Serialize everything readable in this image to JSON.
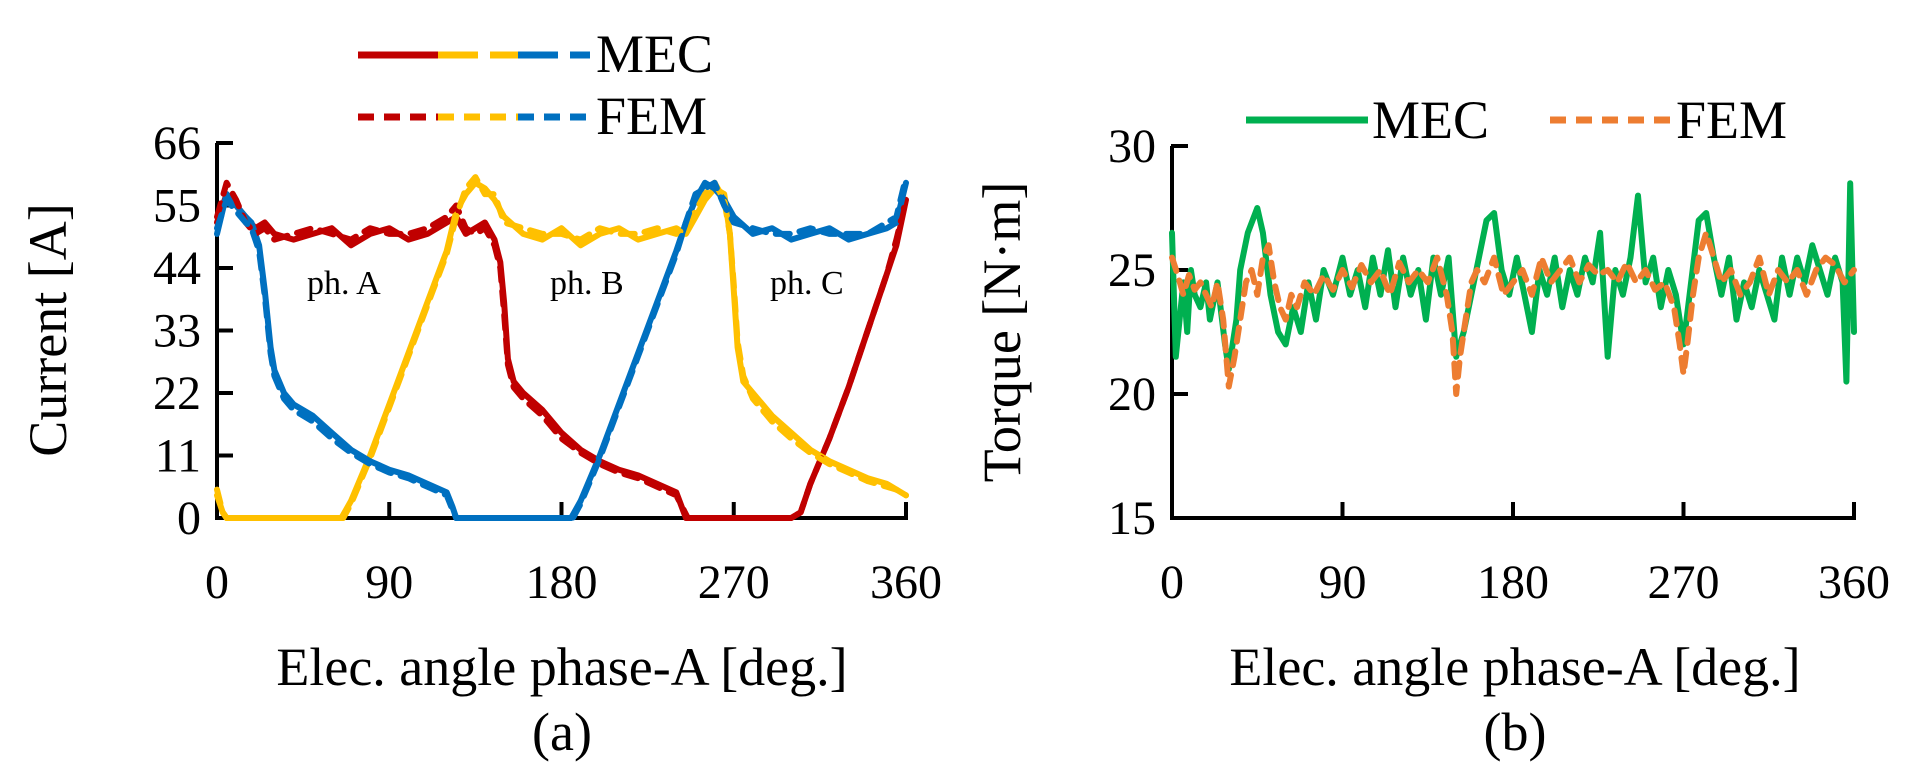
{
  "chart_data": [
    {
      "panel_label": "(a)",
      "type": "line",
      "ylabel": "Current [A]",
      "xlabel": "Elec. angle phase-A [deg.]",
      "xlim": [
        0,
        360
      ],
      "ylim": [
        0,
        66
      ],
      "xticks": [
        0,
        90,
        180,
        270,
        360
      ],
      "yticks": [
        0,
        11,
        22,
        33,
        44,
        55,
        66
      ],
      "legend_position": "top-center",
      "legend": [
        {
          "label": "MEC",
          "style": "solid",
          "colors": [
            "#C00000",
            "#FFC000",
            "#0070C0"
          ]
        },
        {
          "label": "FEM",
          "style": "dashed",
          "colors": [
            "#C00000",
            "#FFC000",
            "#0070C0"
          ]
        }
      ],
      "annotations": [
        {
          "text": "ph. A",
          "x": 90,
          "y": 42
        },
        {
          "text": "ph. B",
          "x": 195,
          "y": 42
        },
        {
          "text": "ph. C",
          "x": 315,
          "y": 42
        }
      ],
      "series": [
        {
          "name": "ph. A MEC",
          "color": "#C00000",
          "style": "solid",
          "x": [
            0,
            5,
            10,
            15,
            20,
            25,
            30,
            40,
            50,
            60,
            70,
            80,
            90,
            100,
            110,
            120,
            125,
            130,
            135,
            140,
            145,
            148,
            150,
            152,
            155,
            160,
            170,
            180,
            190,
            200,
            210,
            220,
            230,
            240,
            245,
            250,
            260,
            270,
            280,
            290,
            300,
            305,
            310,
            320,
            330,
            340,
            350,
            355,
            360
          ],
          "y": [
            52,
            57,
            55,
            53,
            51,
            52,
            50,
            49,
            50,
            51,
            48,
            50,
            51,
            49,
            50,
            52,
            53,
            50,
            51,
            52,
            49,
            45,
            38,
            28,
            24,
            22,
            19,
            15,
            12,
            10,
            8.5,
            7.5,
            6,
            4.5,
            0,
            0,
            0,
            0,
            0,
            0,
            0,
            1,
            6,
            14,
            23,
            33,
            43,
            48,
            56
          ]
        },
        {
          "name": "ph. B MEC",
          "color": "#FFC000",
          "style": "solid",
          "x": [
            0,
            3,
            5,
            10,
            20,
            30,
            40,
            50,
            60,
            65,
            70,
            80,
            90,
            100,
            110,
            120,
            125,
            130,
            135,
            140,
            145,
            150,
            160,
            170,
            180,
            190,
            200,
            210,
            220,
            230,
            240,
            245,
            250,
            255,
            260,
            265,
            268,
            270,
            272,
            275,
            280,
            290,
            300,
            310,
            320,
            330,
            340,
            350,
            355,
            360
          ],
          "y": [
            4,
            1,
            0,
            0,
            0,
            0,
            0,
            0,
            0,
            0,
            3,
            11,
            20,
            29,
            38,
            47,
            54,
            57,
            59,
            58,
            56,
            53,
            50,
            49,
            51,
            48,
            50,
            51,
            49,
            50,
            51,
            50,
            53,
            56,
            58,
            57,
            50,
            40,
            30,
            24,
            22,
            18,
            15,
            12,
            10,
            8.5,
            7,
            6,
            5,
            4
          ]
        },
        {
          "name": "ph. C MEC",
          "color": "#0070C0",
          "style": "solid",
          "x": [
            0,
            5,
            10,
            15,
            18,
            20,
            22,
            25,
            28,
            30,
            35,
            40,
            50,
            60,
            70,
            80,
            90,
            100,
            110,
            120,
            123,
            125,
            130,
            140,
            150,
            160,
            170,
            180,
            185,
            190,
            200,
            210,
            220,
            230,
            240,
            245,
            250,
            255,
            260,
            265,
            270,
            280,
            290,
            300,
            310,
            320,
            330,
            340,
            350,
            355,
            360
          ],
          "y": [
            50,
            57,
            55,
            53,
            52,
            50,
            48,
            40,
            30,
            26,
            22,
            20,
            18,
            15,
            12,
            10,
            8.5,
            7.5,
            6,
            4.5,
            2,
            0,
            0,
            0,
            0,
            0,
            0,
            0,
            0,
            3,
            11,
            20,
            29,
            38,
            47,
            52,
            56,
            59,
            58,
            56,
            53,
            50,
            51,
            49,
            50,
            51,
            49,
            50,
            51,
            52,
            59
          ]
        },
        {
          "name": "ph. A FEM",
          "color": "#C00000",
          "style": "dashed",
          "x": [
            0,
            5,
            10,
            15,
            20,
            25,
            30,
            40,
            50,
            60,
            70,
            80,
            90,
            100,
            110,
            120,
            125,
            130,
            135,
            140,
            145,
            148,
            150,
            152,
            155,
            160,
            170,
            180,
            190,
            200,
            210,
            220,
            230,
            240,
            246,
            250,
            260,
            270,
            280,
            290,
            300,
            305,
            310,
            320,
            330,
            340,
            350,
            355,
            360
          ],
          "y": [
            53,
            59,
            56,
            52,
            50,
            51,
            49,
            50,
            51,
            50,
            49,
            51,
            50,
            50,
            51,
            53,
            55,
            51,
            50,
            51,
            48,
            44,
            36,
            27,
            23,
            21,
            18,
            14,
            11.5,
            9.5,
            8,
            7,
            5.5,
            4,
            0,
            0,
            0,
            0,
            0,
            0,
            0,
            1,
            6,
            14,
            23,
            33,
            43,
            49,
            56
          ]
        },
        {
          "name": "ph. B FEM",
          "color": "#FFC000",
          "style": "dashed",
          "x": [
            0,
            3,
            5,
            10,
            20,
            30,
            40,
            50,
            60,
            66,
            70,
            80,
            90,
            100,
            110,
            120,
            125,
            130,
            135,
            140,
            145,
            150,
            160,
            170,
            180,
            190,
            200,
            210,
            220,
            230,
            240,
            245,
            250,
            255,
            260,
            265,
            268,
            270,
            272,
            275,
            280,
            290,
            300,
            310,
            320,
            330,
            340,
            350,
            355,
            360
          ],
          "y": [
            5,
            1,
            0,
            0,
            0,
            0,
            0,
            0,
            0,
            0,
            2.5,
            10.5,
            19.5,
            28.5,
            37.5,
            46.5,
            53,
            58,
            60,
            57,
            57,
            52,
            51,
            50,
            50,
            49,
            51,
            50,
            50,
            51,
            50,
            51,
            54,
            57,
            59,
            56,
            50,
            41,
            31,
            25,
            21,
            17,
            14,
            11.5,
            9.5,
            8,
            6.5,
            5.5,
            5,
            4
          ]
        },
        {
          "name": "ph. C FEM",
          "color": "#0070C0",
          "style": "dashed",
          "x": [
            0,
            5,
            10,
            15,
            18,
            20,
            22,
            25,
            28,
            30,
            35,
            40,
            50,
            60,
            70,
            80,
            90,
            100,
            110,
            120,
            123,
            125,
            130,
            140,
            150,
            160,
            170,
            180,
            186,
            190,
            200,
            210,
            220,
            230,
            240,
            245,
            250,
            255,
            260,
            265,
            270,
            280,
            290,
            300,
            310,
            320,
            330,
            340,
            350,
            355,
            360
          ],
          "y": [
            51,
            56,
            54,
            52,
            51,
            49,
            47,
            39,
            29,
            25,
            21,
            19,
            17,
            14,
            11.5,
            9.5,
            8,
            7,
            5.5,
            4,
            1.5,
            0,
            0,
            0,
            0,
            0,
            0,
            0,
            0,
            2.5,
            10.5,
            19.5,
            28.5,
            37.5,
            46.5,
            52,
            57,
            58,
            59,
            55,
            52,
            51,
            50,
            50,
            51,
            50,
            50,
            50,
            52,
            53,
            60
          ]
        }
      ]
    },
    {
      "panel_label": "(b)",
      "type": "line",
      "ylabel": "Torque [N·m]",
      "xlabel": "Elec. angle phase-A [deg.]",
      "xlim": [
        0,
        360
      ],
      "ylim": [
        15,
        30
      ],
      "xticks": [
        0,
        90,
        180,
        270,
        360
      ],
      "yticks": [
        15,
        20,
        25,
        30
      ],
      "legend_position": "top-center",
      "legend": [
        {
          "label": "MEC",
          "style": "solid",
          "color": "#00B050"
        },
        {
          "label": "FEM",
          "style": "dashed",
          "color": "#ED7D31"
        }
      ],
      "series": [
        {
          "name": "MEC",
          "color": "#00B050",
          "style": "solid",
          "x": [
            0,
            2,
            4,
            6,
            8,
            10,
            12,
            15,
            18,
            20,
            24,
            28,
            30,
            32,
            34,
            36,
            40,
            45,
            48,
            52,
            56,
            60,
            64,
            68,
            72,
            76,
            80,
            85,
            90,
            94,
            98,
            102,
            106,
            110,
            114,
            118,
            122,
            126,
            130,
            134,
            138,
            142,
            146,
            150,
            154,
            158,
            162,
            166,
            170,
            174,
            178,
            182,
            186,
            190,
            194,
            198,
            202,
            206,
            210,
            214,
            218,
            222,
            226,
            230,
            234,
            238,
            242,
            246,
            250,
            254,
            258,
            262,
            266,
            270,
            274,
            278,
            282,
            286,
            290,
            294,
            298,
            302,
            306,
            310,
            314,
            318,
            322,
            326,
            330,
            334,
            338,
            342,
            346,
            350,
            354,
            356,
            358,
            360
          ],
          "y": [
            26.5,
            21.5,
            23.0,
            24.5,
            22.5,
            25.0,
            24.0,
            23.5,
            24.5,
            23.0,
            24.5,
            22.0,
            21.0,
            22.0,
            23.0,
            25.0,
            26.5,
            27.5,
            26.5,
            24.0,
            22.5,
            22.0,
            23.5,
            22.5,
            24.5,
            23.0,
            25.0,
            24.0,
            25.5,
            24.0,
            25.0,
            23.5,
            25.5,
            24.0,
            25.8,
            23.5,
            25.5,
            24.0,
            25.0,
            23.0,
            25.5,
            24.0,
            25.5,
            21.5,
            22.5,
            24.0,
            25.5,
            27.0,
            27.3,
            25.0,
            24.0,
            25.5,
            24.0,
            22.5,
            25.0,
            24.0,
            25.5,
            23.5,
            25.0,
            24.0,
            25.5,
            24.5,
            26.5,
            21.5,
            25.0,
            24.0,
            25.5,
            28.0,
            24.5,
            25.5,
            23.5,
            25.0,
            24.0,
            22.0,
            24.5,
            27.0,
            27.3,
            25.5,
            24.0,
            25.5,
            23.0,
            24.5,
            23.5,
            25.0,
            24.0,
            23.0,
            25.5,
            24.0,
            25.5,
            24.5,
            26.0,
            25.0,
            24.0,
            25.5,
            24.5,
            20.5,
            28.5,
            22.5
          ]
        },
        {
          "name": "FEM",
          "color": "#ED7D31",
          "style": "dashed",
          "x": [
            0,
            3,
            6,
            9,
            12,
            15,
            18,
            21,
            24,
            27,
            30,
            33,
            36,
            39,
            42,
            45,
            48,
            51,
            54,
            57,
            60,
            63,
            66,
            70,
            75,
            80,
            85,
            90,
            95,
            100,
            105,
            110,
            115,
            120,
            125,
            130,
            135,
            140,
            145,
            148,
            150,
            152,
            155,
            158,
            161,
            165,
            170,
            175,
            180,
            185,
            190,
            195,
            200,
            205,
            210,
            215,
            220,
            225,
            230,
            235,
            240,
            245,
            250,
            255,
            260,
            265,
            268,
            270,
            272,
            275,
            278,
            282,
            286,
            290,
            295,
            300,
            305,
            310,
            315,
            320,
            325,
            330,
            335,
            340,
            345,
            350,
            355,
            360
          ],
          "y": [
            25.5,
            24.8,
            24.0,
            24.8,
            24.2,
            24.5,
            24.0,
            23.5,
            24.5,
            23.0,
            20.3,
            21.5,
            23.0,
            24.5,
            25.0,
            24.0,
            25.5,
            26.0,
            24.5,
            23.5,
            23.0,
            24.0,
            23.5,
            24.5,
            24.0,
            24.8,
            24.2,
            25.0,
            24.3,
            25.2,
            24.5,
            25.0,
            24.0,
            25.3,
            24.5,
            25.0,
            24.5,
            25.5,
            24.0,
            22.5,
            20.0,
            21.5,
            23.0,
            24.5,
            25.0,
            24.5,
            25.5,
            24.0,
            24.5,
            25.0,
            24.0,
            25.5,
            24.5,
            25.0,
            25.5,
            24.5,
            25.2,
            24.8,
            25.0,
            24.5,
            25.3,
            24.5,
            25.0,
            24.2,
            24.5,
            23.5,
            22.0,
            20.8,
            22.0,
            24.0,
            25.5,
            26.5,
            25.5,
            24.5,
            25.0,
            24.0,
            24.5,
            25.5,
            24.0,
            25.0,
            24.5,
            25.0,
            24.0,
            25.0,
            25.5,
            25.2,
            24.5,
            25.0
          ]
        }
      ]
    }
  ]
}
